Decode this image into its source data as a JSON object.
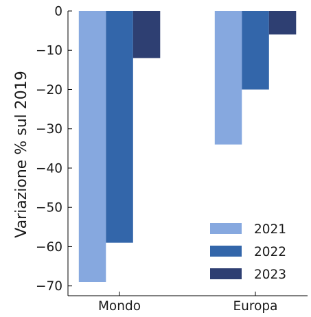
{
  "chart_data": {
    "type": "bar",
    "title": "",
    "xlabel": "",
    "ylabel": "Variazione % sul 2019",
    "categories": [
      "Mondo",
      "Europa"
    ],
    "series": [
      {
        "name": "2021",
        "values": [
          -69,
          -34
        ],
        "color": "#86a8df"
      },
      {
        "name": "2022",
        "values": [
          -59,
          -20
        ],
        "color": "#3366aa"
      },
      {
        "name": "2023",
        "values": [
          -12,
          -6
        ],
        "color": "#2e3f72"
      }
    ],
    "ylim": [
      -72.5,
      0
    ],
    "yticks": [
      0,
      -10,
      -20,
      -30,
      -40,
      -50,
      -60,
      -70
    ],
    "ytick_labels": [
      "0",
      "−10",
      "−20",
      "−30",
      "−40",
      "−50",
      "−60",
      "−70"
    ],
    "grid": false,
    "legend_position": "bottom-right"
  }
}
